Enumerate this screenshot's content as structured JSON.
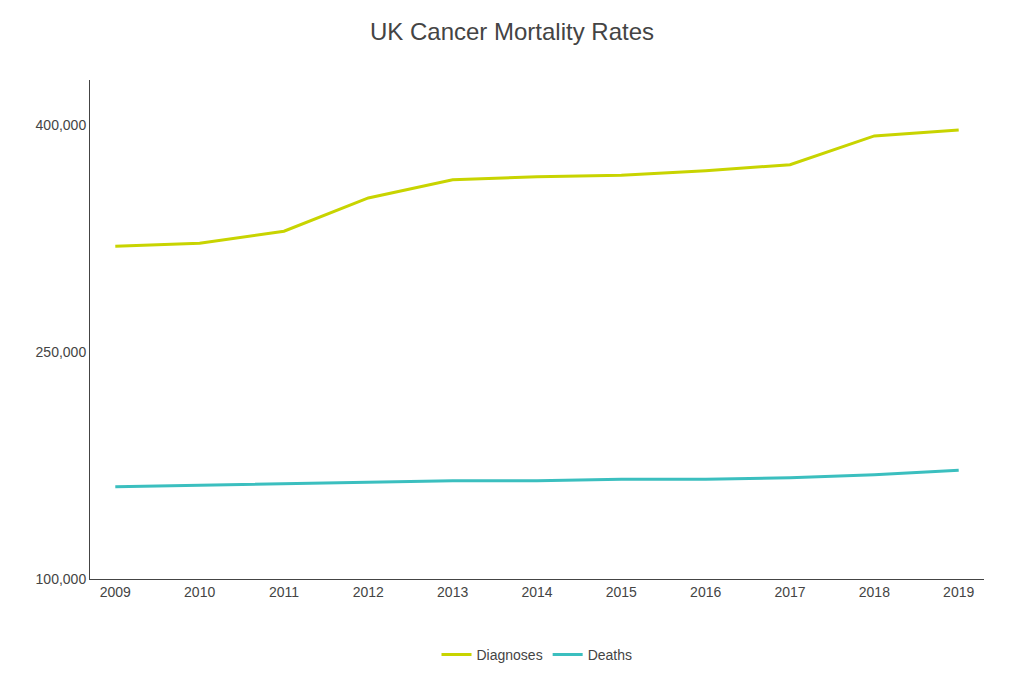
{
  "chart_data": {
    "type": "line",
    "title": "UK Cancer Mortality Rates",
    "x": [
      2009,
      2010,
      2011,
      2012,
      2013,
      2014,
      2015,
      2016,
      2017,
      2018,
      2019
    ],
    "series": [
      {
        "name": "Diagnoses",
        "color": "#c8d400",
        "values": [
          320000,
          322000,
          330000,
          352000,
          364000,
          366000,
          367000,
          370000,
          374000,
          393000,
          397000
        ]
      },
      {
        "name": "Deaths",
        "color": "#3bbfbf",
        "values": [
          161000,
          162000,
          163000,
          164000,
          165000,
          165000,
          166000,
          166000,
          167000,
          169000,
          172000
        ]
      }
    ],
    "xlim": [
      2008.7,
      2019.3
    ],
    "xticks": [
      2009,
      2010,
      2011,
      2012,
      2013,
      2014,
      2015,
      2016,
      2017,
      2018,
      2019
    ],
    "ylim": [
      100000,
      430000
    ],
    "yticks": [
      {
        "value": 100000,
        "label": "100,000"
      },
      {
        "value": 250000,
        "label": "250,000"
      },
      {
        "value": 400000,
        "label": "400,000"
      }
    ],
    "grid": false,
    "legend": "bottom"
  }
}
